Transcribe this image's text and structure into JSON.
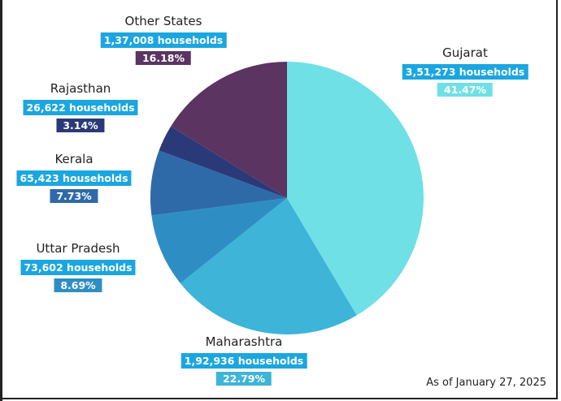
{
  "chart_data": {
    "type": "pie",
    "start": "top",
    "direction": "clockwise",
    "slices": [
      {
        "label": "Gujarat",
        "households": "3,51,273 households",
        "value": 351273,
        "percent": "41.47%",
        "color": "#6fe0e6"
      },
      {
        "label": "Maharashtra",
        "households": "1,92,936 households",
        "value": 192936,
        "percent": "22.79%",
        "color": "#3db4d8"
      },
      {
        "label": "Uttar Pradesh",
        "households": "73,602 households",
        "value": 73602,
        "percent": "8.69%",
        "color": "#2e8ec4"
      },
      {
        "label": "Kerala",
        "households": "65,423 households",
        "value": 65423,
        "percent": "7.73%",
        "color": "#2f6aa8"
      },
      {
        "label": "Rajasthan",
        "households": "26,622 households",
        "value": 26622,
        "percent": "3.14%",
        "color": "#2a3a78"
      },
      {
        "label": "Other States",
        "households": "1,37,008 households",
        "value": 137008,
        "percent": "16.18%",
        "color": "#5b3462"
      }
    ],
    "household_label_color": "#1ba6e0",
    "note": "As of January 27, 2025"
  }
}
